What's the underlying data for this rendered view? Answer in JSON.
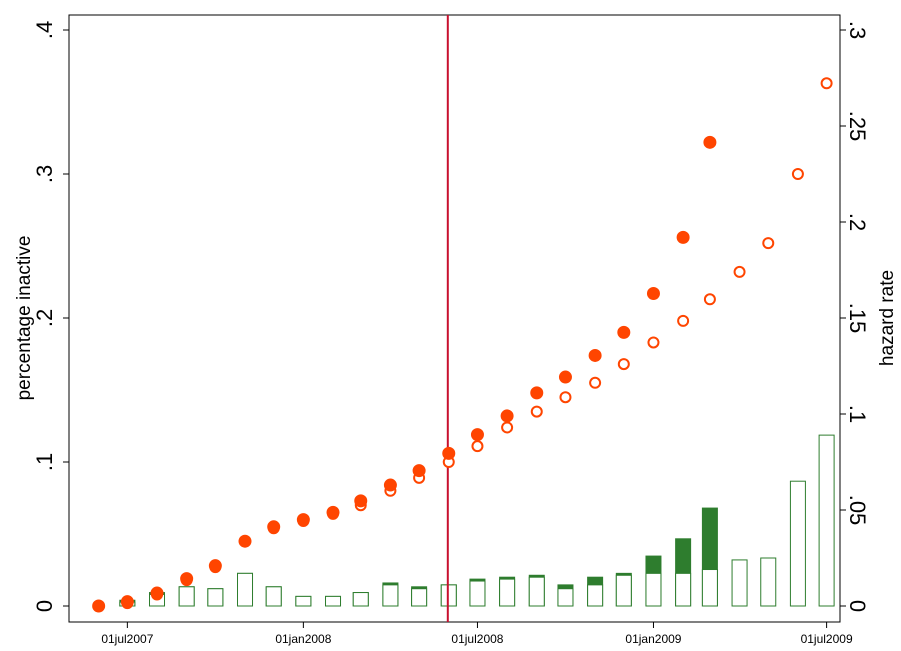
{
  "chart_data": {
    "type": "scatter",
    "grid": false,
    "ylabel_left": "percentage inactive",
    "ylabel_right": "hazard rate",
    "ylim_left": [
      0,
      0.4
    ],
    "ylim_right": [
      0,
      0.3
    ],
    "yticks_left": [
      0,
      0.1,
      0.2,
      0.3,
      0.4
    ],
    "yticks_left_labels": [
      "0",
      ".1",
      ".2",
      ".3",
      ".4"
    ],
    "yticks_right": [
      0,
      0.05,
      0.1,
      0.15,
      0.2,
      0.25,
      0.3
    ],
    "yticks_right_labels": [
      "0",
      ".05",
      ".1",
      ".15",
      ".2",
      ".25",
      ".3"
    ],
    "xrange": [
      "2007-05-01",
      "2009-07-15"
    ],
    "xticks": [
      "2007-07-01",
      "2008-01-01",
      "2008-07-01",
      "2009-01-01",
      "2009-07-01"
    ],
    "xtick_labels": [
      "01jul2007",
      "01jan2008",
      "01jul2008",
      "01jan2009",
      "01jul2009"
    ],
    "vline": "2008-05-31",
    "colors": {
      "filled_marker": "#ff4500",
      "hollow_marker": "#ff4500",
      "bar_outline": "#2e7d2e",
      "bar_fill": "#2e7d2e",
      "vline": "#c8102e"
    },
    "x": [
      "2007-06-01",
      "2007-07-01",
      "2007-08-01",
      "2007-09-01",
      "2007-10-01",
      "2007-11-01",
      "2007-12-01",
      "2008-01-01",
      "2008-02-01",
      "2008-03-01",
      "2008-04-01",
      "2008-05-01",
      "2008-06-01",
      "2008-07-01",
      "2008-08-01",
      "2008-09-01",
      "2008-10-01",
      "2008-11-01",
      "2008-12-01",
      "2009-01-01",
      "2009-02-01",
      "2009-03-01",
      "2009-04-01",
      "2009-05-01",
      "2009-06-01",
      "2009-07-01"
    ],
    "series": [
      {
        "role": "inactive-filled",
        "axis": "left",
        "marker": "filled-circle",
        "values": [
          0.0,
          0.003,
          0.009,
          0.019,
          0.028,
          0.045,
          0.055,
          0.06,
          0.065,
          0.073,
          0.084,
          0.094,
          0.106,
          0.119,
          0.132,
          0.148,
          0.159,
          0.174,
          0.19,
          0.217,
          0.256,
          0.322,
          null,
          null,
          null,
          null
        ]
      },
      {
        "role": "inactive-hollow",
        "axis": "left",
        "marker": "hollow-circle",
        "values": [
          0.0,
          0.002,
          0.008,
          0.018,
          0.027,
          0.045,
          0.054,
          0.059,
          0.064,
          0.07,
          0.08,
          0.089,
          0.1,
          0.111,
          0.124,
          0.135,
          0.145,
          0.155,
          0.168,
          0.183,
          0.198,
          0.213,
          0.232,
          0.252,
          0.3,
          0.363
        ]
      },
      {
        "role": "hazard-hollow-bars",
        "axis": "right",
        "marker": "hollow-bar",
        "values": [
          0.0,
          0.002,
          0.006,
          0.01,
          0.009,
          0.017,
          0.01,
          0.005,
          0.005,
          0.007,
          0.011,
          0.009,
          0.011,
          0.013,
          0.014,
          0.015,
          0.009,
          0.011,
          0.016,
          0.017,
          0.017,
          0.019,
          0.024,
          0.025,
          0.065,
          0.089
        ]
      },
      {
        "role": "hazard-filled-bars",
        "axis": "right",
        "marker": "filled-bar",
        "values": [
          0.0,
          0.003,
          0.007,
          0.01,
          0.009,
          0.017,
          0.01,
          0.005,
          0.005,
          0.007,
          0.012,
          0.01,
          0.011,
          0.014,
          0.015,
          0.016,
          0.011,
          0.015,
          0.017,
          0.026,
          0.035,
          0.051,
          null,
          null,
          null,
          null
        ]
      }
    ]
  }
}
